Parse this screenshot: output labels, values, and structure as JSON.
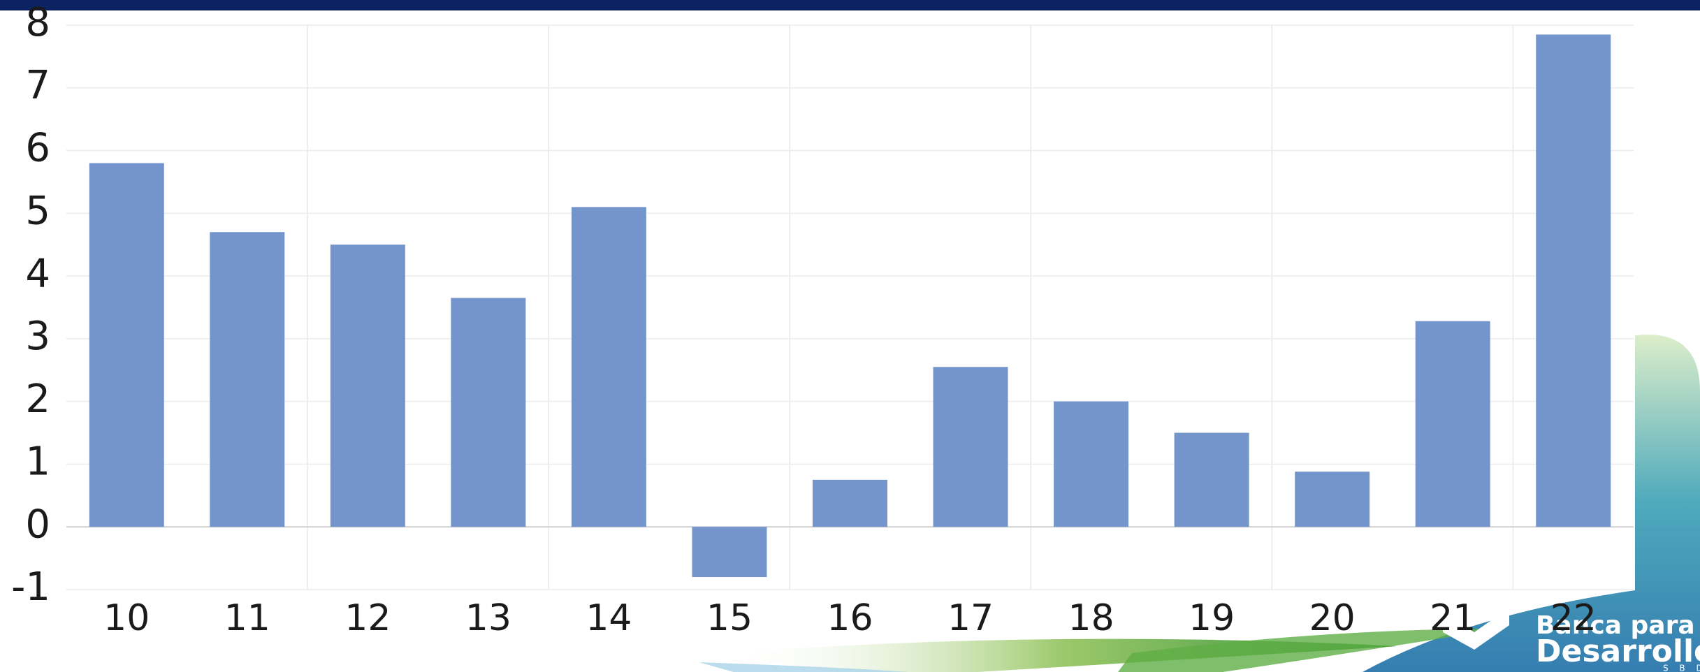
{
  "chart_data": {
    "type": "bar",
    "categories": [
      "10",
      "11",
      "12",
      "13",
      "14",
      "15",
      "16",
      "17",
      "18",
      "19",
      "20",
      "21",
      "22"
    ],
    "values": [
      5.8,
      4.7,
      4.5,
      3.65,
      5.1,
      -0.8,
      0.75,
      2.55,
      2.0,
      1.5,
      0.88,
      3.28,
      7.85
    ],
    "color": "#7494cc",
    "ylim": [
      -1,
      8
    ],
    "yticks": [
      -1,
      0,
      1,
      2,
      3,
      4,
      5,
      6,
      7,
      8
    ],
    "grid": true
  },
  "logo": {
    "line1": "Banca para el",
    "line2": "Desarrollo",
    "line3": "S B D"
  }
}
